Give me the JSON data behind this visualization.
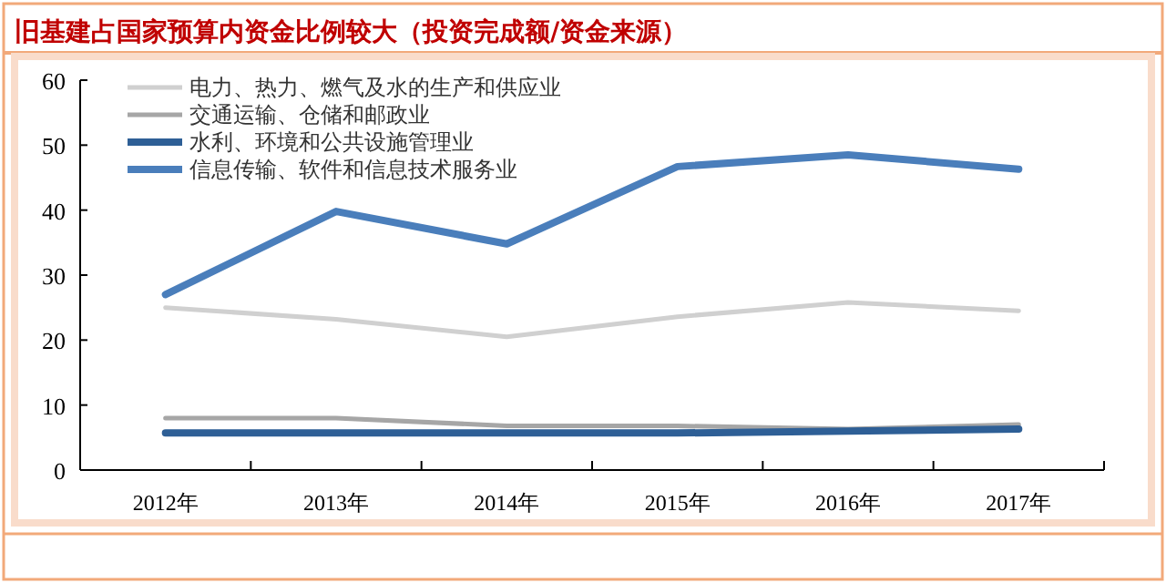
{
  "chart_data": {
    "type": "line",
    "title": "旧基建占国家预算内资金比例较大（投资完成额/资金来源）",
    "categories": [
      "2012年",
      "2013年",
      "2014年",
      "2015年",
      "2016年",
      "2017年"
    ],
    "ylim": [
      0,
      60
    ],
    "yticks": [
      0,
      10,
      20,
      30,
      40,
      50,
      60
    ],
    "legend": "top left",
    "grid": false,
    "marker": "none",
    "line_style": "solid",
    "series": [
      {
        "name": "电力、热力、燃气及水的生产和供应业",
        "color": "#d0d0d0",
        "values": [
          25,
          23.2,
          20.5,
          23.6,
          25.8,
          24.5
        ]
      },
      {
        "name": "交通运输、仓储和邮政业",
        "color": "#a6a6a6",
        "values": [
          8,
          8,
          6.8,
          6.8,
          6.3,
          7
        ]
      },
      {
        "name": "水利、环境和公共设施管理业",
        "color": "#2e5f96",
        "values": [
          5.7,
          5.7,
          5.7,
          5.7,
          6,
          6.3
        ]
      },
      {
        "name": "信息传输、软件和信息技术服务业",
        "color": "#4a7ebb",
        "values": [
          27,
          39.8,
          34.8,
          46.7,
          48.5,
          46.3
        ]
      }
    ]
  }
}
